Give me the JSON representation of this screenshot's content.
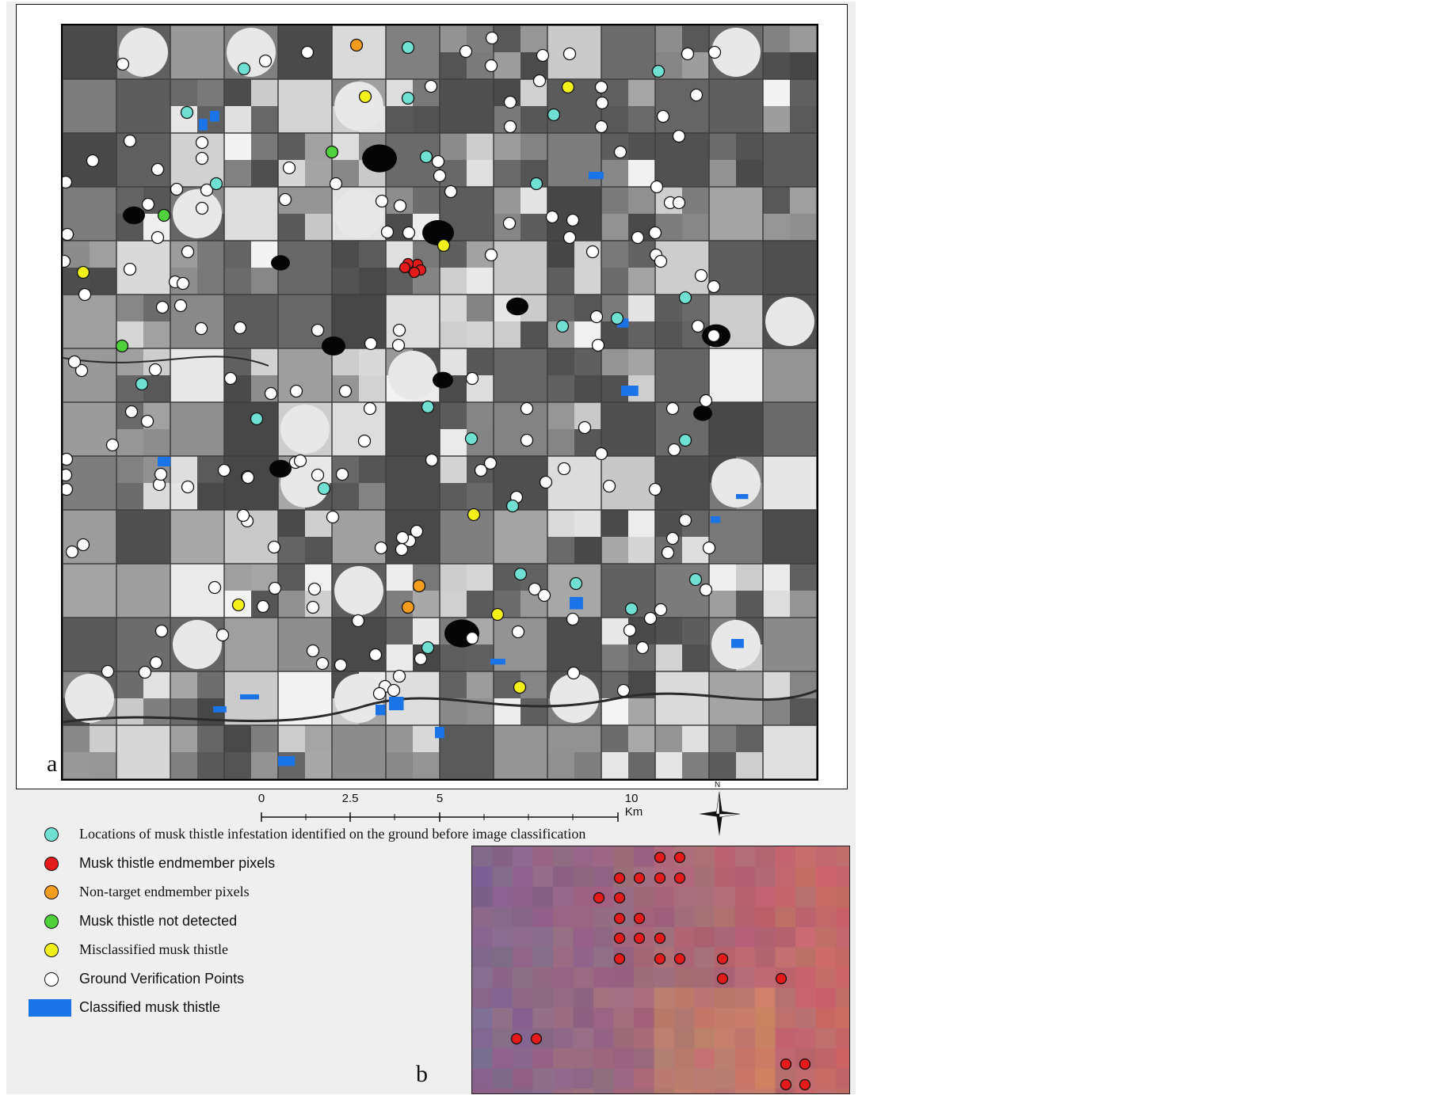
{
  "figure": {
    "panel_a_label": "a",
    "panel_b_label": "b"
  },
  "scale_bar": {
    "ticks": [
      "0",
      "2.5",
      "5",
      "10 Km"
    ]
  },
  "compass": {
    "north_label": "N",
    "icon": "north-arrow-icon"
  },
  "legend": [
    {
      "label": "Locations of musk thistle infestation identified on the ground before image classification",
      "color": "#6fe0d2",
      "shape": "circle",
      "font": "serif"
    },
    {
      "label": "Musk thistle endmember pixels",
      "color": "#e51a1a",
      "shape": "circle",
      "font": "sans"
    },
    {
      "label": "Non-target endmember pixels",
      "color": "#f39c1e",
      "shape": "circle",
      "font": "serif"
    },
    {
      "label": "Musk thistle not detected",
      "color": "#4ed13a",
      "shape": "circle",
      "font": "sans"
    },
    {
      "label": "Misclassified musk thistle",
      "color": "#f3f01a",
      "shape": "circle",
      "font": "serif"
    },
    {
      "label": "Ground Verification Points",
      "color": "#ffffff",
      "shape": "circle",
      "font": "sans"
    },
    {
      "label": "Classified musk thistle",
      "color": "#1a74e8",
      "shape": "rect",
      "font": "sans"
    }
  ],
  "colors": {
    "infestation": "#6fe0d2",
    "endmember": "#e51a1a",
    "non_target": "#f39c1e",
    "not_detected": "#4ed13a",
    "misclassified": "#f3f01a",
    "ground": "#ffffff",
    "classified": "#1a74e8"
  }
}
